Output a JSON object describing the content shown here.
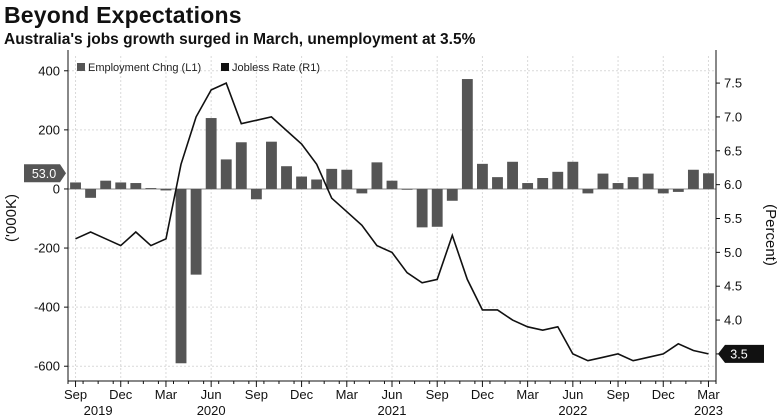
{
  "chart_data": {
    "type": "bar+line",
    "title": "Beyond Expectations",
    "subtitle": "Australia's jobs growth surged in March, unemployment at 3.5%",
    "legend": {
      "placement": "top-left",
      "items": [
        {
          "label": "Employment Chng (L1)",
          "color": "#555555"
        },
        {
          "label": "Jobless Rate (R1)",
          "color": "#111111"
        }
      ]
    },
    "left_axis": {
      "label": "('000K)",
      "ylim": [
        -650,
        450
      ],
      "ticks": [
        400,
        200,
        0,
        -200,
        -400,
        -600
      ],
      "tick_labels": [
        "400",
        "200",
        "0",
        "-200",
        "-400",
        "-600"
      ]
    },
    "right_axis": {
      "label": "(Percent)",
      "ylim": [
        3.1,
        7.9
      ],
      "ticks": [
        7.5,
        7.0,
        6.5,
        6.0,
        5.5,
        5.0,
        4.5,
        4.0,
        3.5
      ],
      "tick_labels": [
        "7.5",
        "7.0",
        "6.5",
        "6.0",
        "5.5",
        "5.0",
        "4.5",
        "4.0",
        ""
      ]
    },
    "x_axis": {
      "month_labels": [
        {
          "index": 0,
          "label": "Sep"
        },
        {
          "index": 3,
          "label": "Dec"
        },
        {
          "index": 6,
          "label": "Mar"
        },
        {
          "index": 9,
          "label": "Jun"
        },
        {
          "index": 12,
          "label": "Sep"
        },
        {
          "index": 15,
          "label": "Dec"
        },
        {
          "index": 18,
          "label": "Mar"
        },
        {
          "index": 21,
          "label": "Jun"
        },
        {
          "index": 24,
          "label": "Sep"
        },
        {
          "index": 27,
          "label": "Dec"
        },
        {
          "index": 30,
          "label": "Mar"
        },
        {
          "index": 33,
          "label": "Jun"
        },
        {
          "index": 36,
          "label": "Sep"
        },
        {
          "index": 39,
          "label": "Dec"
        },
        {
          "index": 42,
          "label": "Mar"
        }
      ],
      "year_labels": [
        {
          "index": 1.5,
          "label": "2019"
        },
        {
          "index": 9,
          "label": "2020"
        },
        {
          "index": 21,
          "label": "2021"
        },
        {
          "index": 33,
          "label": "2022"
        },
        {
          "index": 42,
          "label": "2023"
        }
      ]
    },
    "series": [
      {
        "name": "Employment Chng",
        "type": "bar",
        "axis": "left",
        "x": [
          "Sep 2019",
          "Oct 2019",
          "Nov 2019",
          "Dec 2019",
          "Jan 2020",
          "Feb 2020",
          "Mar 2020",
          "Apr 2020",
          "May 2020",
          "Jun 2020",
          "Jul 2020",
          "Aug 2020",
          "Sep 2020",
          "Oct 2020",
          "Nov 2020",
          "Dec 2020",
          "Jan 2021",
          "Feb 2021",
          "Mar 2021",
          "Apr 2021",
          "May 2021",
          "Jun 2021",
          "Jul 2021",
          "Aug 2021",
          "Sep 2021",
          "Oct 2021",
          "Nov 2021",
          "Dec 2021",
          "Jan 2022",
          "Feb 2022",
          "Mar 2022",
          "Apr 2022",
          "May 2022",
          "Jun 2022",
          "Jul 2022",
          "Aug 2022",
          "Sep 2022",
          "Oct 2022",
          "Nov 2022",
          "Dec 2022",
          "Jan 2023",
          "Feb 2023",
          "Mar 2023"
        ],
        "values": [
          22,
          -30,
          28,
          22,
          20,
          3,
          -5,
          -590,
          -290,
          240,
          100,
          158,
          -35,
          160,
          77,
          42,
          32,
          68,
          65,
          -15,
          90,
          28,
          -2,
          -130,
          -128,
          -40,
          372,
          85,
          40,
          92,
          20,
          37,
          58,
          92,
          -15,
          52,
          20,
          40,
          52,
          -15,
          -10,
          65,
          53
        ]
      },
      {
        "name": "Jobless Rate",
        "type": "line",
        "axis": "right",
        "x": [
          "Sep 2019",
          "Oct 2019",
          "Nov 2019",
          "Dec 2019",
          "Jan 2020",
          "Feb 2020",
          "Mar 2020",
          "Apr 2020",
          "May 2020",
          "Jun 2020",
          "Jul 2020",
          "Aug 2020",
          "Sep 2020",
          "Oct 2020",
          "Nov 2020",
          "Dec 2020",
          "Jan 2021",
          "Feb 2021",
          "Mar 2021",
          "Apr 2021",
          "May 2021",
          "Jun 2021",
          "Jul 2021",
          "Aug 2021",
          "Sep 2021",
          "Oct 2021",
          "Nov 2021",
          "Dec 2021",
          "Jan 2022",
          "Feb 2022",
          "Mar 2022",
          "Apr 2022",
          "May 2022",
          "Jun 2022",
          "Jul 2022",
          "Aug 2022",
          "Sep 2022",
          "Oct 2022",
          "Nov 2022",
          "Dec 2022",
          "Jan 2023",
          "Feb 2023",
          "Mar 2023"
        ],
        "values": [
          5.2,
          5.3,
          5.2,
          5.1,
          5.3,
          5.1,
          5.2,
          6.3,
          7.0,
          7.4,
          7.5,
          6.9,
          6.95,
          7.0,
          6.8,
          6.6,
          6.3,
          5.8,
          5.6,
          5.4,
          5.1,
          5.0,
          4.7,
          4.55,
          4.6,
          5.25,
          4.6,
          4.15,
          4.15,
          4.0,
          3.9,
          3.85,
          3.9,
          3.5,
          3.4,
          3.45,
          3.5,
          3.4,
          3.45,
          3.5,
          3.65,
          3.55,
          3.5
        ]
      }
    ],
    "annotations": [
      {
        "axis": "left",
        "label": "53.0",
        "value": 53,
        "color": "#555555"
      },
      {
        "axis": "right",
        "label": "3.5",
        "value": 3.5,
        "color": "#111111"
      }
    ]
  }
}
